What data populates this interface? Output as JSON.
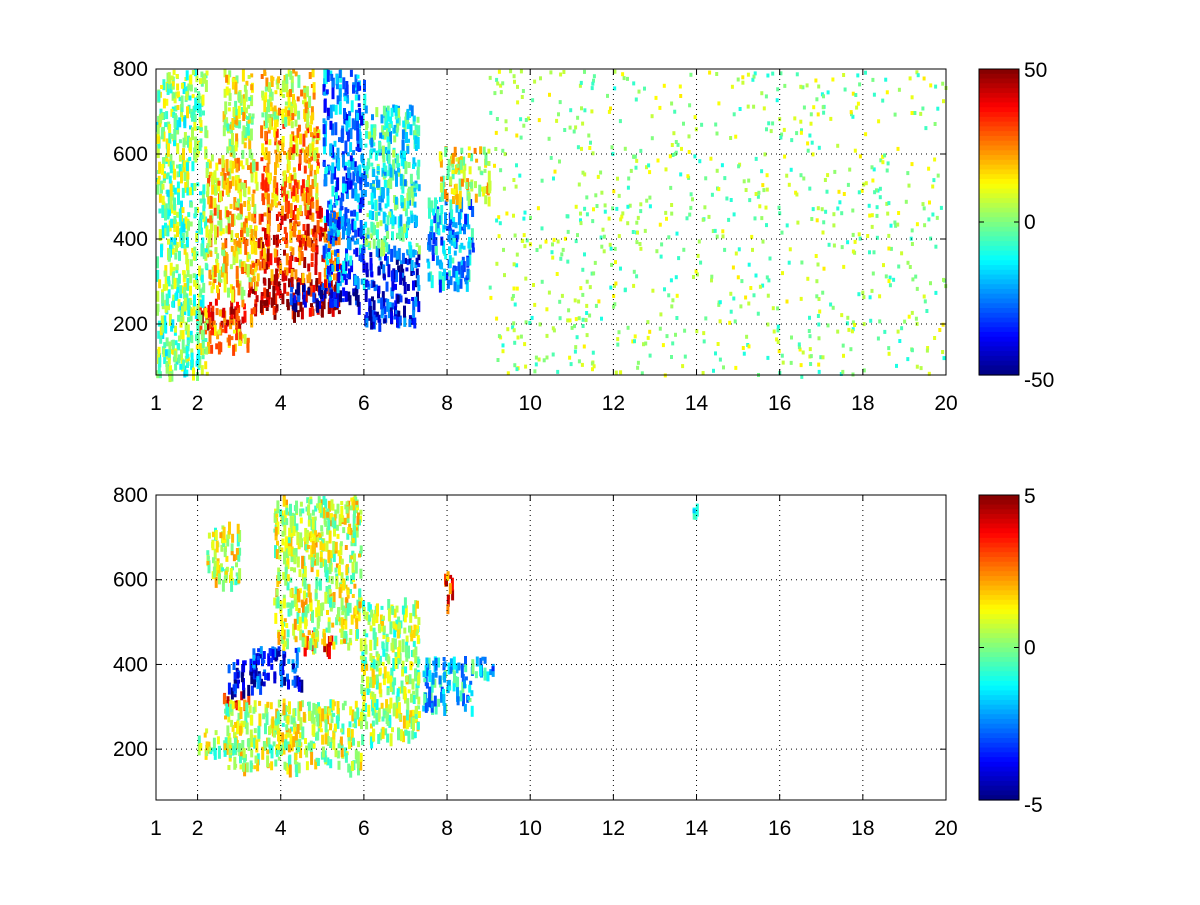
{
  "chart_data": [
    {
      "type": "heatmap",
      "title": "",
      "xlabel": "",
      "ylabel": "",
      "xlim": [
        1,
        20
      ],
      "ylim": [
        80,
        800
      ],
      "xticks": [
        "1",
        "2",
        "4",
        "6",
        "8",
        "10",
        "12",
        "14",
        "16",
        "18",
        "20"
      ],
      "yticks": [
        "200",
        "400",
        "600",
        "800"
      ],
      "grid": true,
      "colormap": "jet",
      "clim": [
        -50,
        50
      ],
      "colorbar_ticks": [
        "-50",
        "0",
        "50"
      ],
      "blobs": [
        {
          "x": [
            1.9,
            3.4
          ],
          "y": [
            200,
            260
          ],
          "value": 35
        },
        {
          "x": [
            2.2,
            3.2
          ],
          "y": [
            150,
            200
          ],
          "value": 22
        },
        {
          "x": [
            3.2,
            5.4
          ],
          "y": [
            230,
            310
          ],
          "value": 45
        },
        {
          "x": [
            4.2,
            5.9
          ],
          "y": [
            250,
            300
          ],
          "value": -42
        },
        {
          "x": [
            3.3,
            5.4
          ],
          "y": [
            310,
            480
          ],
          "value": 32
        },
        {
          "x": [
            3.5,
            4.9
          ],
          "y": [
            480,
            680
          ],
          "value": 20
        },
        {
          "x": [
            3.5,
            4.8
          ],
          "y": [
            680,
            800
          ],
          "value": 12
        },
        {
          "x": [
            2.2,
            3.4
          ],
          "y": [
            280,
            600
          ],
          "value": 15
        },
        {
          "x": [
            2.6,
            3.3
          ],
          "y": [
            600,
            800
          ],
          "value": 8
        },
        {
          "x": [
            5.0,
            6.0
          ],
          "y": [
            300,
            800
          ],
          "value": -25
        },
        {
          "x": [
            6.0,
            7.3
          ],
          "y": [
            210,
            380
          ],
          "value": -35
        },
        {
          "x": [
            6.0,
            7.3
          ],
          "y": [
            380,
            720
          ],
          "value": -10
        },
        {
          "x": [
            7.5,
            8.6
          ],
          "y": [
            300,
            500
          ],
          "value": -20
        },
        {
          "x": [
            7.8,
            9.0
          ],
          "y": [
            500,
            620
          ],
          "value": 10
        },
        {
          "x": [
            1.0,
            2.2
          ],
          "y": [
            80,
            800
          ],
          "value": 0
        },
        {
          "x": [
            9.0,
            20.0
          ],
          "y": [
            80,
            800
          ],
          "value": 2
        }
      ]
    },
    {
      "type": "heatmap",
      "title": "",
      "xlabel": "",
      "ylabel": "",
      "xlim": [
        1,
        20
      ],
      "ylim": [
        80,
        800
      ],
      "xticks": [
        "1",
        "2",
        "4",
        "6",
        "8",
        "10",
        "12",
        "14",
        "16",
        "18",
        "20"
      ],
      "yticks": [
        "200",
        "400",
        "600",
        "800"
      ],
      "grid": true,
      "colormap": "jet",
      "clim": [
        -5,
        5
      ],
      "colorbar_ticks": [
        "-5",
        "0",
        "5"
      ],
      "blobs": [
        {
          "x": [
            2.6,
            3.2
          ],
          "y": [
            310,
            340
          ],
          "value": 3.5
        },
        {
          "x": [
            2.7,
            3.4
          ],
          "y": [
            345,
            420
          ],
          "value": -4.2
        },
        {
          "x": [
            3.3,
            4.5
          ],
          "y": [
            355,
            445
          ],
          "value": -3.5
        },
        {
          "x": [
            4.5,
            5.2
          ],
          "y": [
            440,
            480
          ],
          "value": 3.0
        },
        {
          "x": [
            2.0,
            2.9
          ],
          "y": [
            200,
            250
          ],
          "value": 0.5
        },
        {
          "x": [
            2.6,
            5.9
          ],
          "y": [
            160,
            320
          ],
          "value": 0.6
        },
        {
          "x": [
            3.8,
            5.9
          ],
          "y": [
            450,
            800
          ],
          "value": 0.8
        },
        {
          "x": [
            5.9,
            7.3
          ],
          "y": [
            230,
            560
          ],
          "value": 0.3
        },
        {
          "x": [
            7.4,
            8.6
          ],
          "y": [
            300,
            420
          ],
          "value": -1.5
        },
        {
          "x": [
            8.6,
            9.1
          ],
          "y": [
            380,
            420
          ],
          "value": -1.8
        },
        {
          "x": [
            7.9,
            8.1
          ],
          "y": [
            540,
            630
          ],
          "value": 3.0
        },
        {
          "x": [
            2.2,
            3.0
          ],
          "y": [
            600,
            740
          ],
          "value": 0.7
        },
        {
          "x": [
            13.9,
            14.0
          ],
          "y": [
            760,
            780
          ],
          "value": -1.5
        }
      ]
    }
  ]
}
